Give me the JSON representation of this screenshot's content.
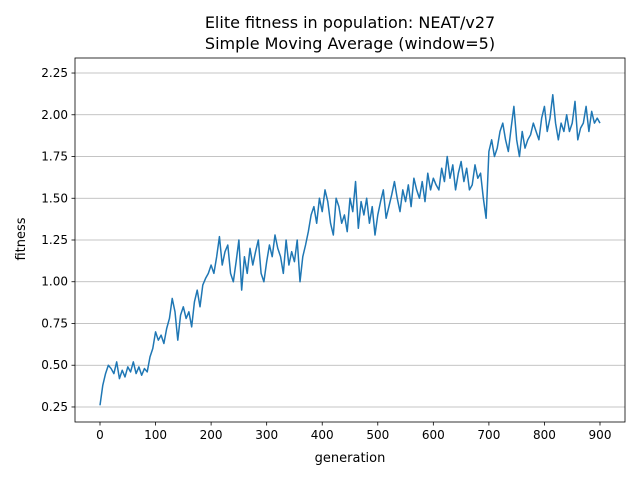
{
  "chart_data": {
    "type": "line",
    "title": "Elite fitness in population: NEAT/v27",
    "subtitle": "Simple Moving Average (window=5)",
    "xlabel": "generation",
    "ylabel": "fitness",
    "xlim": [
      -45,
      945
    ],
    "ylim": [
      0.16,
      2.34
    ],
    "xticks": [
      0,
      100,
      200,
      300,
      400,
      500,
      600,
      700,
      800,
      900
    ],
    "yticks": [
      0.25,
      0.5,
      0.75,
      1.0,
      1.25,
      1.5,
      1.75,
      2.0,
      2.25
    ],
    "ytick_labels": [
      "0.25",
      "0.50",
      "0.75",
      "1.00",
      "1.25",
      "1.50",
      "1.75",
      "2.00",
      "2.25"
    ],
    "grid": "horizontal",
    "legend": "none",
    "colors": {
      "line": "#1f77b4",
      "grid": "#b0b0b0",
      "axes": "#000000"
    },
    "series": [
      {
        "x": [
          0,
          5,
          10,
          15,
          20,
          25,
          30,
          35,
          40,
          45,
          50,
          55,
          60,
          65,
          70,
          75,
          80,
          85,
          90,
          95,
          100,
          105,
          110,
          115,
          120,
          125,
          130,
          135,
          140,
          145,
          150,
          155,
          160,
          165,
          170,
          175,
          180,
          185,
          190,
          195,
          200,
          205,
          210,
          215,
          220,
          225,
          230,
          235,
          240,
          245,
          250,
          255,
          260,
          265,
          270,
          275,
          280,
          285,
          290,
          295,
          300,
          305,
          310,
          315,
          320,
          325,
          330,
          335,
          340,
          345,
          350,
          355,
          360,
          365,
          370,
          375,
          380,
          385,
          390,
          395,
          400,
          405,
          410,
          415,
          420,
          425,
          430,
          435,
          440,
          445,
          450,
          455,
          460,
          465,
          470,
          475,
          480,
          485,
          490,
          495,
          500,
          505,
          510,
          515,
          520,
          525,
          530,
          535,
          540,
          545,
          550,
          555,
          560,
          565,
          570,
          575,
          580,
          585,
          590,
          595,
          600,
          605,
          610,
          615,
          620,
          625,
          630,
          635,
          640,
          645,
          650,
          655,
          660,
          665,
          670,
          675,
          680,
          685,
          690,
          695,
          700,
          705,
          710,
          715,
          720,
          725,
          730,
          735,
          740,
          745,
          750,
          755,
          760,
          765,
          770,
          775,
          780,
          785,
          790,
          795,
          800,
          805,
          810,
          815,
          820,
          825,
          830,
          835,
          840,
          845,
          850,
          855,
          860,
          865,
          870,
          875,
          880,
          885,
          890,
          895,
          900
        ],
        "values": [
          0.26,
          0.38,
          0.45,
          0.5,
          0.48,
          0.45,
          0.52,
          0.42,
          0.47,
          0.43,
          0.49,
          0.46,
          0.52,
          0.45,
          0.49,
          0.44,
          0.48,
          0.46,
          0.55,
          0.6,
          0.7,
          0.65,
          0.68,
          0.63,
          0.72,
          0.78,
          0.9,
          0.82,
          0.65,
          0.8,
          0.85,
          0.78,
          0.82,
          0.73,
          0.88,
          0.95,
          0.85,
          0.98,
          1.02,
          1.05,
          1.1,
          1.05,
          1.15,
          1.27,
          1.1,
          1.18,
          1.22,
          1.05,
          1.0,
          1.12,
          1.25,
          0.95,
          1.15,
          1.05,
          1.2,
          1.1,
          1.18,
          1.25,
          1.05,
          1.0,
          1.12,
          1.22,
          1.15,
          1.28,
          1.2,
          1.15,
          1.05,
          1.25,
          1.1,
          1.18,
          1.12,
          1.25,
          1.0,
          1.15,
          1.22,
          1.3,
          1.4,
          1.45,
          1.35,
          1.5,
          1.42,
          1.55,
          1.48,
          1.35,
          1.28,
          1.5,
          1.45,
          1.35,
          1.4,
          1.3,
          1.5,
          1.42,
          1.6,
          1.32,
          1.48,
          1.4,
          1.5,
          1.35,
          1.45,
          1.28,
          1.4,
          1.48,
          1.55,
          1.38,
          1.45,
          1.52,
          1.6,
          1.5,
          1.42,
          1.55,
          1.48,
          1.58,
          1.45,
          1.62,
          1.55,
          1.5,
          1.6,
          1.48,
          1.65,
          1.55,
          1.62,
          1.58,
          1.55,
          1.68,
          1.6,
          1.75,
          1.62,
          1.7,
          1.55,
          1.65,
          1.72,
          1.6,
          1.68,
          1.55,
          1.58,
          1.7,
          1.62,
          1.65,
          1.5,
          1.38,
          1.78,
          1.85,
          1.75,
          1.8,
          1.9,
          1.95,
          1.85,
          1.78,
          1.92,
          2.05,
          1.85,
          1.75,
          1.9,
          1.8,
          1.85,
          1.88,
          1.95,
          1.9,
          1.85,
          1.98,
          2.05,
          1.9,
          1.98,
          2.12,
          1.95,
          1.85,
          1.95,
          1.9,
          2.0,
          1.9,
          1.95,
          2.08,
          1.85,
          1.92,
          1.95,
          2.05,
          1.9,
          2.02,
          1.95,
          1.98,
          1.95
        ]
      }
    ]
  }
}
